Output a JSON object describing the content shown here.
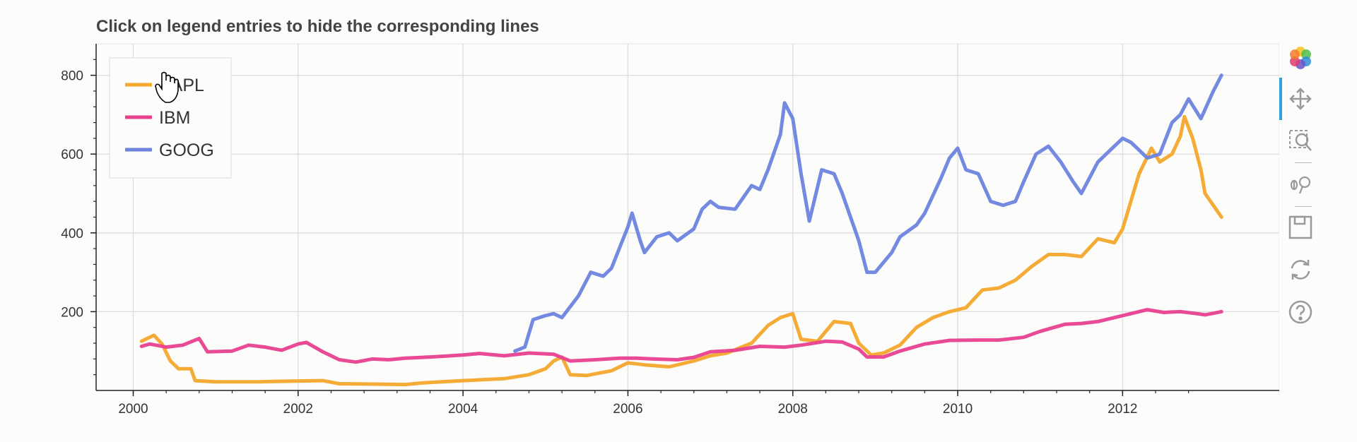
{
  "chart_data": {
    "type": "line",
    "title": "Click on legend entries to hide the corresponding lines",
    "xlabel": "",
    "ylabel": "",
    "xlim": [
      1999.55,
      2013.9
    ],
    "ylim": [
      0,
      880
    ],
    "x_ticks": [
      2000,
      2002,
      2004,
      2006,
      2008,
      2010,
      2012
    ],
    "y_ticks": [
      200,
      400,
      600,
      800
    ],
    "grid": true,
    "legend_position": "top-left",
    "series": [
      {
        "name": "AAPL",
        "color": "#f4a82c",
        "points": [
          [
            2000.1,
            125
          ],
          [
            2000.25,
            140
          ],
          [
            2000.35,
            118
          ],
          [
            2000.45,
            75
          ],
          [
            2000.55,
            55
          ],
          [
            2000.7,
            55
          ],
          [
            2000.75,
            25
          ],
          [
            2001.0,
            22
          ],
          [
            2001.5,
            22
          ],
          [
            2002.0,
            24
          ],
          [
            2002.3,
            25
          ],
          [
            2002.5,
            17
          ],
          [
            2003.0,
            16
          ],
          [
            2003.3,
            15
          ],
          [
            2003.5,
            19
          ],
          [
            2004.0,
            25
          ],
          [
            2004.5,
            30
          ],
          [
            2004.8,
            40
          ],
          [
            2005.0,
            55
          ],
          [
            2005.1,
            75
          ],
          [
            2005.2,
            85
          ],
          [
            2005.3,
            40
          ],
          [
            2005.5,
            38
          ],
          [
            2005.8,
            50
          ],
          [
            2006.0,
            70
          ],
          [
            2006.2,
            65
          ],
          [
            2006.5,
            60
          ],
          [
            2006.8,
            75
          ],
          [
            2007.0,
            88
          ],
          [
            2007.2,
            95
          ],
          [
            2007.5,
            120
          ],
          [
            2007.7,
            165
          ],
          [
            2007.85,
            185
          ],
          [
            2008.0,
            195
          ],
          [
            2008.1,
            130
          ],
          [
            2008.3,
            125
          ],
          [
            2008.5,
            175
          ],
          [
            2008.7,
            170
          ],
          [
            2008.8,
            120
          ],
          [
            2008.95,
            90
          ],
          [
            2009.1,
            95
          ],
          [
            2009.3,
            115
          ],
          [
            2009.5,
            160
          ],
          [
            2009.7,
            185
          ],
          [
            2009.9,
            200
          ],
          [
            2010.1,
            210
          ],
          [
            2010.3,
            255
          ],
          [
            2010.5,
            260
          ],
          [
            2010.7,
            280
          ],
          [
            2010.9,
            315
          ],
          [
            2011.1,
            345
          ],
          [
            2011.3,
            345
          ],
          [
            2011.5,
            340
          ],
          [
            2011.7,
            385
          ],
          [
            2011.9,
            375
          ],
          [
            2012.0,
            410
          ],
          [
            2012.2,
            550
          ],
          [
            2012.35,
            615
          ],
          [
            2012.45,
            580
          ],
          [
            2012.6,
            600
          ],
          [
            2012.7,
            645
          ],
          [
            2012.75,
            695
          ],
          [
            2012.85,
            640
          ],
          [
            2012.95,
            560
          ],
          [
            2013.0,
            500
          ],
          [
            2013.1,
            470
          ],
          [
            2013.2,
            440
          ]
        ]
      },
      {
        "name": "IBM",
        "color": "#e8408f",
        "points": [
          [
            2000.1,
            112
          ],
          [
            2000.2,
            118
          ],
          [
            2000.4,
            110
          ],
          [
            2000.6,
            115
          ],
          [
            2000.8,
            132
          ],
          [
            2000.9,
            98
          ],
          [
            2001.2,
            100
          ],
          [
            2001.4,
            115
          ],
          [
            2001.6,
            110
          ],
          [
            2001.8,
            102
          ],
          [
            2002.0,
            118
          ],
          [
            2002.1,
            122
          ],
          [
            2002.3,
            98
          ],
          [
            2002.5,
            78
          ],
          [
            2002.7,
            72
          ],
          [
            2002.9,
            80
          ],
          [
            2003.1,
            78
          ],
          [
            2003.3,
            82
          ],
          [
            2003.6,
            85
          ],
          [
            2004.0,
            90
          ],
          [
            2004.2,
            94
          ],
          [
            2004.5,
            88
          ],
          [
            2004.8,
            95
          ],
          [
            2005.1,
            92
          ],
          [
            2005.3,
            75
          ],
          [
            2005.6,
            78
          ],
          [
            2005.9,
            82
          ],
          [
            2006.1,
            82
          ],
          [
            2006.3,
            80
          ],
          [
            2006.6,
            78
          ],
          [
            2006.8,
            84
          ],
          [
            2007.0,
            98
          ],
          [
            2007.3,
            102
          ],
          [
            2007.6,
            112
          ],
          [
            2007.9,
            110
          ],
          [
            2008.1,
            115
          ],
          [
            2008.4,
            125
          ],
          [
            2008.6,
            123
          ],
          [
            2008.8,
            105
          ],
          [
            2008.9,
            85
          ],
          [
            2009.1,
            85
          ],
          [
            2009.3,
            100
          ],
          [
            2009.6,
            118
          ],
          [
            2009.9,
            127
          ],
          [
            2010.2,
            128
          ],
          [
            2010.5,
            128
          ],
          [
            2010.8,
            135
          ],
          [
            2011.0,
            150
          ],
          [
            2011.3,
            168
          ],
          [
            2011.5,
            170
          ],
          [
            2011.7,
            175
          ],
          [
            2011.9,
            185
          ],
          [
            2012.1,
            195
          ],
          [
            2012.3,
            205
          ],
          [
            2012.5,
            198
          ],
          [
            2012.7,
            200
          ],
          [
            2012.9,
            195
          ],
          [
            2013.0,
            192
          ],
          [
            2013.2,
            200
          ]
        ]
      },
      {
        "name": "GOOG",
        "color": "#6d83de",
        "points": [
          [
            2004.63,
            100
          ],
          [
            2004.75,
            110
          ],
          [
            2004.85,
            180
          ],
          [
            2005.0,
            190
          ],
          [
            2005.1,
            195
          ],
          [
            2005.2,
            185
          ],
          [
            2005.4,
            240
          ],
          [
            2005.55,
            300
          ],
          [
            2005.7,
            290
          ],
          [
            2005.8,
            310
          ],
          [
            2006.0,
            415
          ],
          [
            2006.05,
            450
          ],
          [
            2006.15,
            380
          ],
          [
            2006.2,
            350
          ],
          [
            2006.35,
            390
          ],
          [
            2006.5,
            400
          ],
          [
            2006.6,
            380
          ],
          [
            2006.8,
            410
          ],
          [
            2006.9,
            460
          ],
          [
            2007.0,
            480
          ],
          [
            2007.1,
            465
          ],
          [
            2007.3,
            460
          ],
          [
            2007.5,
            520
          ],
          [
            2007.6,
            510
          ],
          [
            2007.7,
            560
          ],
          [
            2007.85,
            650
          ],
          [
            2007.9,
            730
          ],
          [
            2008.0,
            690
          ],
          [
            2008.1,
            550
          ],
          [
            2008.2,
            430
          ],
          [
            2008.35,
            560
          ],
          [
            2008.5,
            550
          ],
          [
            2008.6,
            500
          ],
          [
            2008.7,
            440
          ],
          [
            2008.8,
            380
          ],
          [
            2008.9,
            300
          ],
          [
            2009.0,
            300
          ],
          [
            2009.2,
            350
          ],
          [
            2009.3,
            390
          ],
          [
            2009.5,
            420
          ],
          [
            2009.6,
            450
          ],
          [
            2009.8,
            540
          ],
          [
            2009.9,
            590
          ],
          [
            2010.0,
            615
          ],
          [
            2010.1,
            560
          ],
          [
            2010.25,
            550
          ],
          [
            2010.4,
            480
          ],
          [
            2010.55,
            470
          ],
          [
            2010.7,
            480
          ],
          [
            2010.8,
            530
          ],
          [
            2010.95,
            600
          ],
          [
            2011.1,
            620
          ],
          [
            2011.25,
            580
          ],
          [
            2011.4,
            530
          ],
          [
            2011.5,
            500
          ],
          [
            2011.7,
            580
          ],
          [
            2011.9,
            620
          ],
          [
            2012.0,
            640
          ],
          [
            2012.1,
            630
          ],
          [
            2012.2,
            610
          ],
          [
            2012.3,
            590
          ],
          [
            2012.45,
            600
          ],
          [
            2012.6,
            680
          ],
          [
            2012.7,
            700
          ],
          [
            2012.8,
            740
          ],
          [
            2012.95,
            690
          ],
          [
            2013.1,
            760
          ],
          [
            2013.2,
            800
          ]
        ]
      }
    ]
  },
  "toolbar": {
    "logo_icon": "bokeh-logo-icon",
    "tools": [
      "pan-icon",
      "box-zoom-icon",
      "wheel-zoom-icon",
      "save-icon",
      "reset-icon",
      "help-icon"
    ],
    "active_color": "#2fa2d9"
  }
}
